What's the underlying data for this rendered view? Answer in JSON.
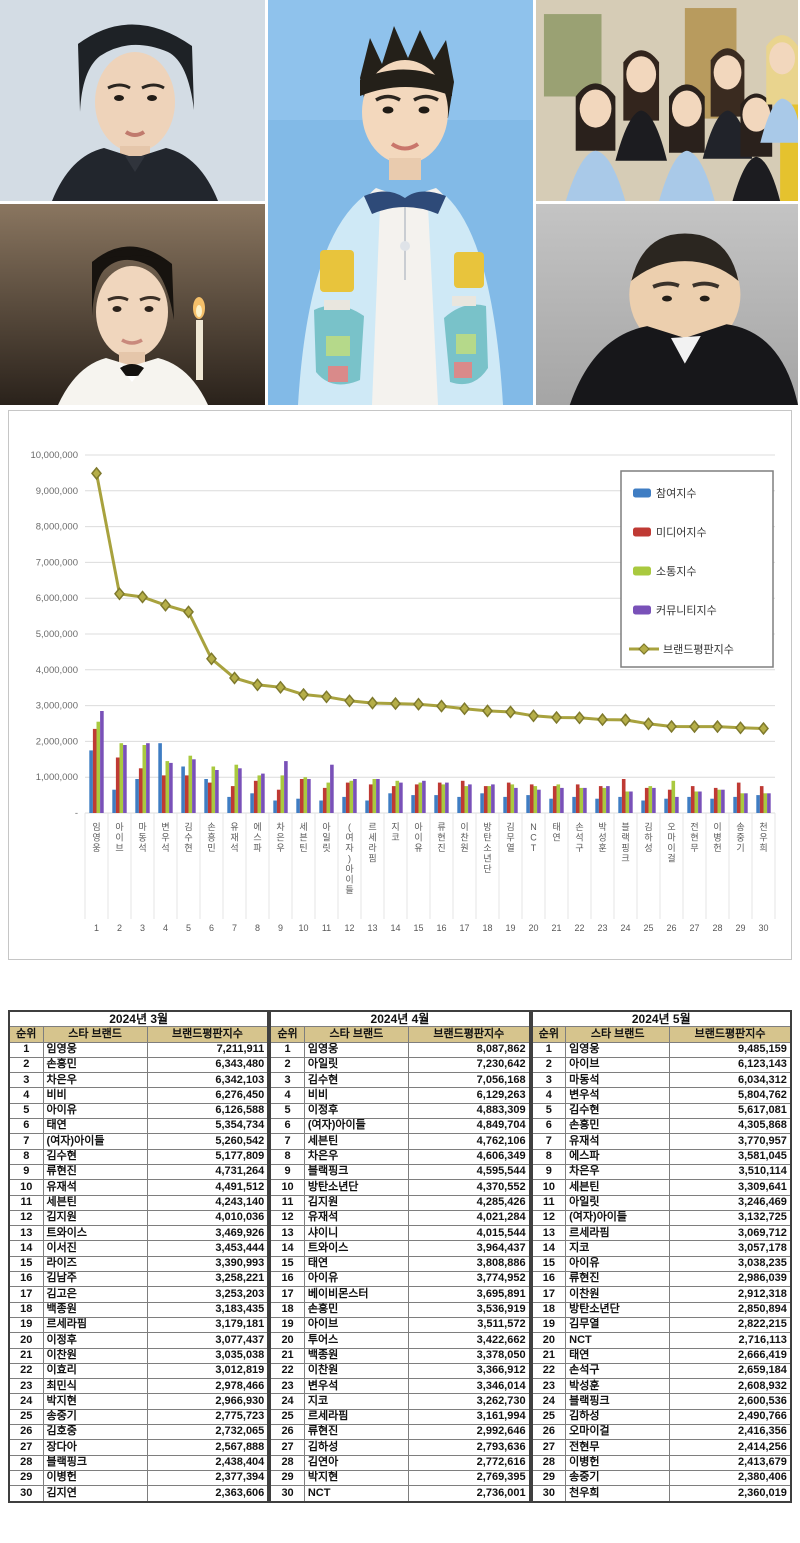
{
  "photos": [
    {
      "id": "kim-soo-hyun-photo"
    },
    {
      "id": "lim-young-woong-photo"
    },
    {
      "id": "ive-group-photo"
    },
    {
      "id": "byeon-woo-seok-photo"
    },
    {
      "id": "ma-dong-seok-photo"
    }
  ],
  "chart_data": {
    "type": "bar",
    "subtype": "grouped-bars-with-line",
    "categories": [
      "임영웅",
      "아이브",
      "마동석",
      "변우석",
      "김수현",
      "손흥민",
      "유재석",
      "에스파",
      "차은우",
      "세븐틴",
      "아일릿",
      "(여자)아이들",
      "르세라핌",
      "지코",
      "아이유",
      "류현진",
      "이찬원",
      "방탄소년단",
      "김무열",
      "NCT",
      "태연",
      "손석구",
      "박성훈",
      "블랙핑크",
      "김하성",
      "오마이걸",
      "전현무",
      "이병헌",
      "송중기",
      "천우희"
    ],
    "ranks": [
      1,
      2,
      3,
      4,
      5,
      6,
      7,
      8,
      9,
      10,
      11,
      12,
      13,
      14,
      15,
      16,
      17,
      18,
      19,
      20,
      21,
      22,
      23,
      24,
      25,
      26,
      27,
      28,
      29,
      30
    ],
    "ylim": [
      0,
      10000000
    ],
    "ytick_step": 1000000,
    "ytick_labels": [
      "-",
      "1,000,000",
      "2,000,000",
      "3,000,000",
      "4,000,000",
      "5,000,000",
      "6,000,000",
      "7,000,000",
      "8,000,000",
      "9,000,000",
      "10,000,000"
    ],
    "grid": true,
    "legend_position": "upper right",
    "series": [
      {
        "name": "참여지수",
        "type": "bar",
        "color": "#3f7dc3",
        "values": [
          1750000,
          650000,
          950000,
          1950000,
          1300000,
          950000,
          450000,
          550000,
          350000,
          400000,
          350000,
          450000,
          350000,
          550000,
          500000,
          500000,
          450000,
          550000,
          450000,
          500000,
          400000,
          450000,
          400000,
          450000,
          350000,
          400000,
          450000,
          400000,
          450000,
          500000
        ]
      },
      {
        "name": "미디어지수",
        "type": "bar",
        "color": "#bf3a34",
        "values": [
          2350000,
          1550000,
          1250000,
          1050000,
          1050000,
          850000,
          750000,
          900000,
          650000,
          950000,
          700000,
          850000,
          800000,
          750000,
          800000,
          850000,
          900000,
          750000,
          850000,
          800000,
          750000,
          800000,
          750000,
          950000,
          700000,
          650000,
          750000,
          700000,
          850000,
          750000
        ]
      },
      {
        "name": "소통지수",
        "type": "bar",
        "color": "#a9c93f",
        "values": [
          2550000,
          1950000,
          1900000,
          1450000,
          1600000,
          1300000,
          1350000,
          1050000,
          1050000,
          1000000,
          850000,
          900000,
          950000,
          900000,
          850000,
          800000,
          750000,
          750000,
          800000,
          750000,
          800000,
          700000,
          700000,
          600000,
          750000,
          900000,
          600000,
          650000,
          550000,
          550000
        ]
      },
      {
        "name": "커뮤니티지수",
        "type": "bar",
        "color": "#7951b8",
        "values": [
          2850000,
          1900000,
          1950000,
          1400000,
          1500000,
          1200000,
          1250000,
          1100000,
          1450000,
          950000,
          1350000,
          950000,
          950000,
          850000,
          900000,
          850000,
          800000,
          800000,
          700000,
          650000,
          700000,
          700000,
          750000,
          600000,
          700000,
          450000,
          600000,
          650000,
          550000,
          550000
        ]
      },
      {
        "name": "브랜드평판지수",
        "type": "line",
        "color": "#a8a23e",
        "marker_fill": "#b5ae48",
        "marker_stroke": "#7e792c",
        "values": [
          9485159,
          6123143,
          6034312,
          5804762,
          5617081,
          4305868,
          3770957,
          3581045,
          3510114,
          3309641,
          3246469,
          3132725,
          3069712,
          3057178,
          3038235,
          2986039,
          2912318,
          2850894,
          2822215,
          2716113,
          2666419,
          2659184,
          2608932,
          2600536,
          2490766,
          2416356,
          2414256,
          2413679,
          2380406,
          2360019
        ]
      }
    ]
  },
  "tables": [
    {
      "month": "2024년 3월",
      "columns": [
        "순위",
        "스타 브랜드",
        "브랜드평판지수"
      ],
      "rows": [
        [
          1,
          "임영웅",
          "7,211,911"
        ],
        [
          2,
          "손흥민",
          "6,343,480"
        ],
        [
          3,
          "차은우",
          "6,342,103"
        ],
        [
          4,
          "비비",
          "6,276,450"
        ],
        [
          5,
          "아이유",
          "6,126,588"
        ],
        [
          6,
          "태연",
          "5,354,734"
        ],
        [
          7,
          "(여자)아이들",
          "5,260,542"
        ],
        [
          8,
          "김수현",
          "5,177,809"
        ],
        [
          9,
          "류현진",
          "4,731,264"
        ],
        [
          10,
          "유재석",
          "4,491,512"
        ],
        [
          11,
          "세븐틴",
          "4,243,140"
        ],
        [
          12,
          "김지원",
          "4,010,036"
        ],
        [
          13,
          "트와이스",
          "3,469,926"
        ],
        [
          14,
          "이서진",
          "3,453,444"
        ],
        [
          15,
          "라이즈",
          "3,390,993"
        ],
        [
          16,
          "김남주",
          "3,258,221"
        ],
        [
          17,
          "김고은",
          "3,253,203"
        ],
        [
          18,
          "백종원",
          "3,183,435"
        ],
        [
          19,
          "르세라핌",
          "3,179,181"
        ],
        [
          20,
          "이정후",
          "3,077,437"
        ],
        [
          21,
          "이찬원",
          "3,035,038"
        ],
        [
          22,
          "이효리",
          "3,012,819"
        ],
        [
          23,
          "최민식",
          "2,978,466"
        ],
        [
          24,
          "박지현",
          "2,966,930"
        ],
        [
          25,
          "송중기",
          "2,775,723"
        ],
        [
          26,
          "김호중",
          "2,732,065"
        ],
        [
          27,
          "장다아",
          "2,567,888"
        ],
        [
          28,
          "블랙핑크",
          "2,438,404"
        ],
        [
          29,
          "이병헌",
          "2,377,394"
        ],
        [
          30,
          "김지연",
          "2,363,606"
        ]
      ]
    },
    {
      "month": "2024년 4월",
      "columns": [
        "순위",
        "스타 브랜드",
        "브랜드평판지수"
      ],
      "rows": [
        [
          1,
          "임영웅",
          "8,087,862"
        ],
        [
          2,
          "아일릿",
          "7,230,642"
        ],
        [
          3,
          "김수현",
          "7,056,168"
        ],
        [
          4,
          "비비",
          "6,129,263"
        ],
        [
          5,
          "이정후",
          "4,883,309"
        ],
        [
          6,
          "(여자)아이들",
          "4,849,704"
        ],
        [
          7,
          "세븐틴",
          "4,762,106"
        ],
        [
          8,
          "차은우",
          "4,606,349"
        ],
        [
          9,
          "블랙핑크",
          "4,595,544"
        ],
        [
          10,
          "방탄소년단",
          "4,370,552"
        ],
        [
          11,
          "김지원",
          "4,285,426"
        ],
        [
          12,
          "유재석",
          "4,021,284"
        ],
        [
          13,
          "샤이니",
          "4,015,544"
        ],
        [
          14,
          "트와이스",
          "3,964,437"
        ],
        [
          15,
          "태연",
          "3,808,886"
        ],
        [
          16,
          "아이유",
          "3,774,952"
        ],
        [
          17,
          "베이비몬스터",
          "3,695,891"
        ],
        [
          18,
          "손흥민",
          "3,536,919"
        ],
        [
          19,
          "아이브",
          "3,511,572"
        ],
        [
          20,
          "투어스",
          "3,422,662"
        ],
        [
          21,
          "백종원",
          "3,378,050"
        ],
        [
          22,
          "이찬원",
          "3,366,912"
        ],
        [
          23,
          "변우석",
          "3,346,014"
        ],
        [
          24,
          "지코",
          "3,262,730"
        ],
        [
          25,
          "르세라핌",
          "3,161,994"
        ],
        [
          26,
          "류현진",
          "2,992,646"
        ],
        [
          27,
          "김하성",
          "2,793,636"
        ],
        [
          28,
          "김연아",
          "2,772,616"
        ],
        [
          29,
          "박지현",
          "2,769,395"
        ],
        [
          30,
          "NCT",
          "2,736,001"
        ]
      ]
    },
    {
      "month": "2024년 5월",
      "columns": [
        "순위",
        "스타 브랜드",
        "브랜드평판지수"
      ],
      "rows": [
        [
          1,
          "임영웅",
          "9,485,159"
        ],
        [
          2,
          "아이브",
          "6,123,143"
        ],
        [
          3,
          "마동석",
          "6,034,312"
        ],
        [
          4,
          "변우석",
          "5,804,762"
        ],
        [
          5,
          "김수현",
          "5,617,081"
        ],
        [
          6,
          "손흥민",
          "4,305,868"
        ],
        [
          7,
          "유재석",
          "3,770,957"
        ],
        [
          8,
          "에스파",
          "3,581,045"
        ],
        [
          9,
          "차은우",
          "3,510,114"
        ],
        [
          10,
          "세븐틴",
          "3,309,641"
        ],
        [
          11,
          "아일릿",
          "3,246,469"
        ],
        [
          12,
          "(여자)아이들",
          "3,132,725"
        ],
        [
          13,
          "르세라핌",
          "3,069,712"
        ],
        [
          14,
          "지코",
          "3,057,178"
        ],
        [
          15,
          "아이유",
          "3,038,235"
        ],
        [
          16,
          "류현진",
          "2,986,039"
        ],
        [
          17,
          "이찬원",
          "2,912,318"
        ],
        [
          18,
          "방탄소년단",
          "2,850,894"
        ],
        [
          19,
          "김무열",
          "2,822,215"
        ],
        [
          20,
          "NCT",
          "2,716,113"
        ],
        [
          21,
          "태연",
          "2,666,419"
        ],
        [
          22,
          "손석구",
          "2,659,184"
        ],
        [
          23,
          "박성훈",
          "2,608,932"
        ],
        [
          24,
          "블랙핑크",
          "2,600,536"
        ],
        [
          25,
          "김하성",
          "2,490,766"
        ],
        [
          26,
          "오마이걸",
          "2,416,356"
        ],
        [
          27,
          "전현무",
          "2,414,256"
        ],
        [
          28,
          "이병헌",
          "2,413,679"
        ],
        [
          29,
          "송중기",
          "2,380,406"
        ],
        [
          30,
          "천우희",
          "2,360,019"
        ]
      ]
    }
  ]
}
